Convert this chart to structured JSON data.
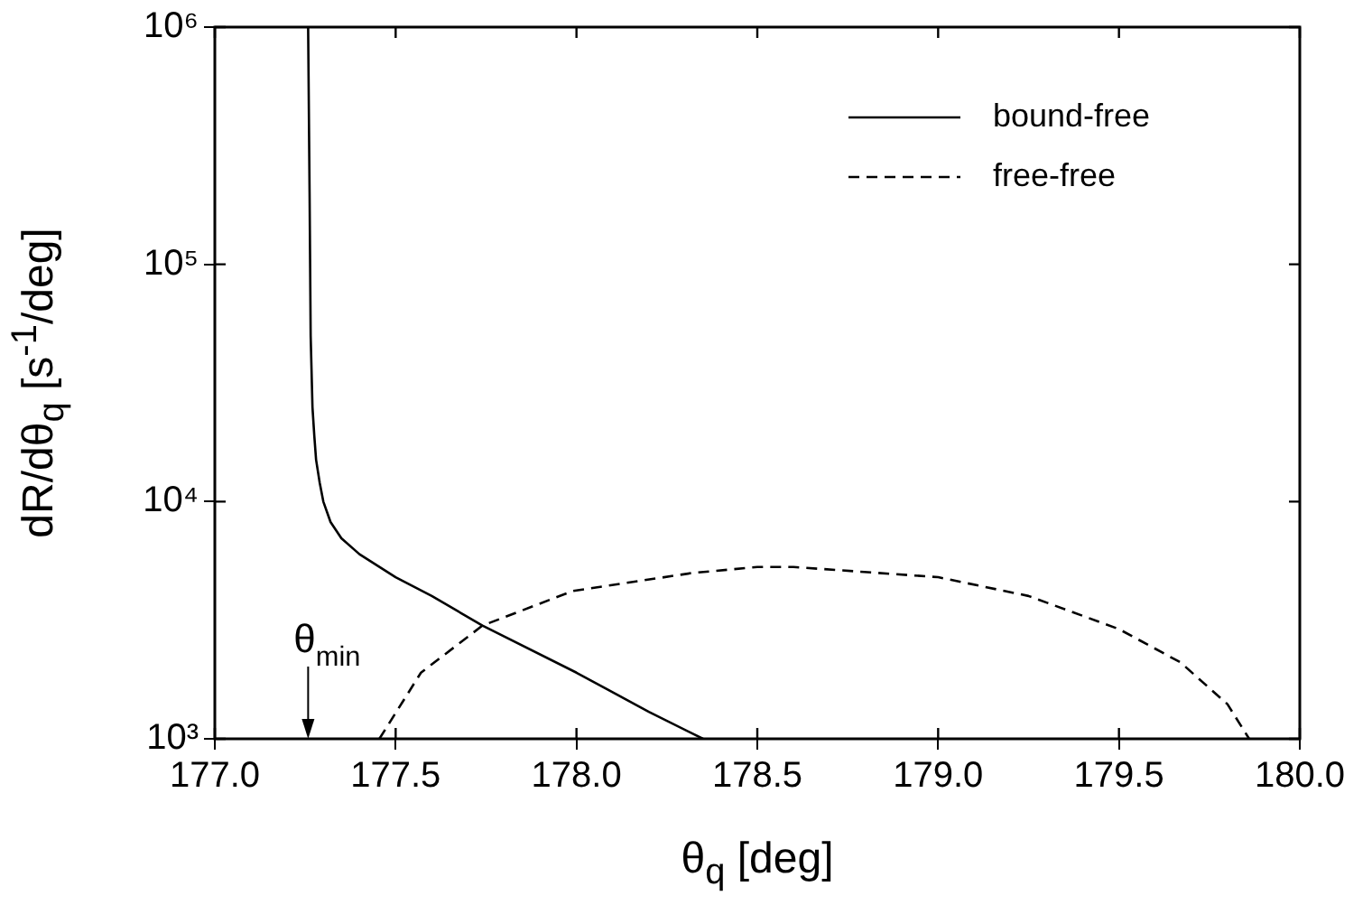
{
  "chart_data": {
    "type": "line",
    "xlabel": "θ$_{q}$ [deg]",
    "ylabel": "dR/dθ$_{q}$ [s$^{-1}$/deg]",
    "series": [
      {
        "name": "bound-free",
        "color": "#000000",
        "line_style": "solid",
        "x": [
          177.258,
          177.262,
          177.265,
          177.27,
          177.275,
          177.28,
          177.29,
          177.3,
          177.32,
          177.35,
          177.4,
          177.5,
          177.6,
          177.74,
          178.0,
          178.2,
          178.35
        ],
        "values": [
          1000000,
          200000,
          50000,
          25000,
          19000,
          15000,
          12000,
          10000,
          8200,
          7000,
          6000,
          4800,
          4000,
          3000,
          1900,
          1300,
          1000
        ]
      },
      {
        "name": "free-free",
        "color": "#000000",
        "line_style": "dashed",
        "x": [
          177.455,
          177.57,
          177.74,
          177.99,
          178.32,
          178.5,
          178.6,
          179.0,
          179.25,
          179.5,
          179.67,
          179.8,
          179.86
        ],
        "values": [
          1000,
          1900,
          3000,
          4200,
          5000,
          5300,
          5300,
          4800,
          4000,
          2900,
          2100,
          1400,
          1000
        ]
      }
    ],
    "xlim": [
      177.0,
      180.0
    ],
    "xticks": [
      {
        "value": 177,
        "label": "177.0"
      },
      {
        "value": 177.5,
        "label": "177.5"
      },
      {
        "value": 178,
        "label": "178.0"
      },
      {
        "value": 178.5,
        "label": "178.5"
      },
      {
        "value": 179,
        "label": "179.0"
      },
      {
        "value": 179.5,
        "label": "179.5"
      },
      {
        "value": 180,
        "label": "180.0"
      }
    ],
    "ylim": [
      1000,
      1000000
    ],
    "log": "y",
    "yticks": [
      {
        "value": 1000,
        "label": "10³"
      },
      {
        "value": 10000,
        "label": "10⁴"
      },
      {
        "value": 100000,
        "label": "10⁵"
      },
      {
        "value": 1000000,
        "label": "10⁶"
      }
    ],
    "grid": false,
    "legend": "top right",
    "marker": "none",
    "annotations": [
      "θ$_{min}$"
    ]
  }
}
